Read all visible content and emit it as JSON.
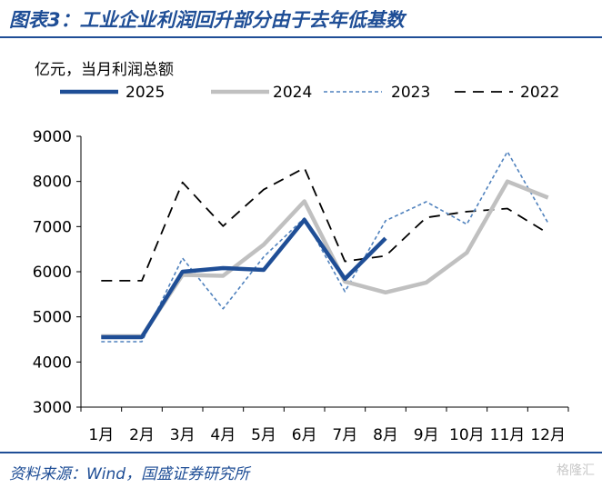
{
  "header": {
    "title": "图表3：工业企业利润回升部分由于去年低基数",
    "source": "资料来源：Wind，国盛证券研究所",
    "watermark": "格隆汇"
  },
  "chart_data": {
    "type": "line",
    "unit_label": "亿元，当月利润总额",
    "categories": [
      "1月",
      "2月",
      "3月",
      "4月",
      "5月",
      "6月",
      "7月",
      "8月",
      "9月",
      "10月",
      "11月",
      "12月"
    ],
    "ylim": [
      3000,
      9000
    ],
    "yticks": [
      "3000",
      "4000",
      "5000",
      "6000",
      "7000",
      "8000",
      "9000"
    ],
    "grid": false,
    "legend_position": "top",
    "series": [
      {
        "name": "2025",
        "color": "#1f4e96",
        "style": "solid-thick",
        "values": [
          4550,
          4550,
          6000,
          6080,
          6040,
          7150,
          5840,
          6740,
          null,
          null,
          null,
          null
        ]
      },
      {
        "name": "2024",
        "color": "#c0c0c0",
        "style": "solid-thick",
        "values": [
          4570,
          4570,
          5930,
          5910,
          6600,
          7560,
          5780,
          5540,
          5760,
          6420,
          8000,
          7640
        ]
      },
      {
        "name": "2023",
        "color": "#4f81bd",
        "style": "dotted",
        "values": [
          4450,
          4450,
          6300,
          5180,
          6330,
          7190,
          5560,
          7130,
          7550,
          7050,
          8660,
          7080
        ]
      },
      {
        "name": "2022",
        "color": "#000000",
        "style": "dashed",
        "values": [
          5800,
          5800,
          7980,
          7010,
          7820,
          8300,
          6230,
          6350,
          7200,
          7330,
          7400,
          6850
        ]
      }
    ]
  }
}
